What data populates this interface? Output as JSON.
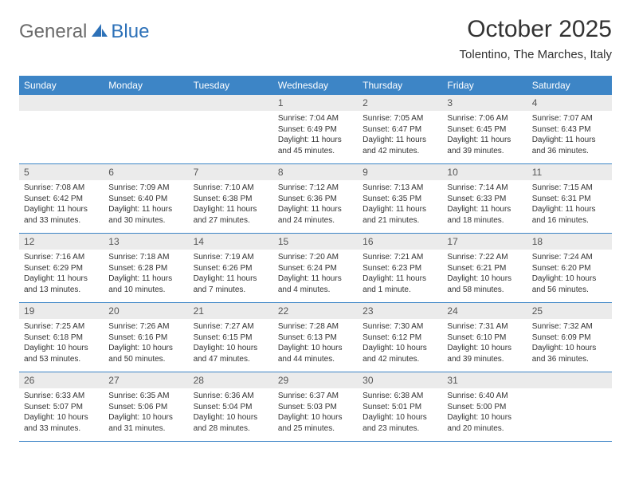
{
  "logo": {
    "general": "General",
    "blue": "Blue"
  },
  "title": "October 2025",
  "location": "Tolentino, The Marches, Italy",
  "colors": {
    "header_bg": "#3d85c6",
    "header_text": "#ffffff",
    "daynum_bg": "#ebebeb",
    "border": "#3d85c6",
    "logo_gray": "#6b6b6b",
    "logo_blue": "#2d71b8"
  },
  "weekdays": [
    "Sunday",
    "Monday",
    "Tuesday",
    "Wednesday",
    "Thursday",
    "Friday",
    "Saturday"
  ],
  "weeks": [
    [
      {
        "empty": true
      },
      {
        "empty": true
      },
      {
        "empty": true
      },
      {
        "day": "1",
        "sunrise": "Sunrise: 7:04 AM",
        "sunset": "Sunset: 6:49 PM",
        "daylight": "Daylight: 11 hours and 45 minutes."
      },
      {
        "day": "2",
        "sunrise": "Sunrise: 7:05 AM",
        "sunset": "Sunset: 6:47 PM",
        "daylight": "Daylight: 11 hours and 42 minutes."
      },
      {
        "day": "3",
        "sunrise": "Sunrise: 7:06 AM",
        "sunset": "Sunset: 6:45 PM",
        "daylight": "Daylight: 11 hours and 39 minutes."
      },
      {
        "day": "4",
        "sunrise": "Sunrise: 7:07 AM",
        "sunset": "Sunset: 6:43 PM",
        "daylight": "Daylight: 11 hours and 36 minutes."
      }
    ],
    [
      {
        "day": "5",
        "sunrise": "Sunrise: 7:08 AM",
        "sunset": "Sunset: 6:42 PM",
        "daylight": "Daylight: 11 hours and 33 minutes."
      },
      {
        "day": "6",
        "sunrise": "Sunrise: 7:09 AM",
        "sunset": "Sunset: 6:40 PM",
        "daylight": "Daylight: 11 hours and 30 minutes."
      },
      {
        "day": "7",
        "sunrise": "Sunrise: 7:10 AM",
        "sunset": "Sunset: 6:38 PM",
        "daylight": "Daylight: 11 hours and 27 minutes."
      },
      {
        "day": "8",
        "sunrise": "Sunrise: 7:12 AM",
        "sunset": "Sunset: 6:36 PM",
        "daylight": "Daylight: 11 hours and 24 minutes."
      },
      {
        "day": "9",
        "sunrise": "Sunrise: 7:13 AM",
        "sunset": "Sunset: 6:35 PM",
        "daylight": "Daylight: 11 hours and 21 minutes."
      },
      {
        "day": "10",
        "sunrise": "Sunrise: 7:14 AM",
        "sunset": "Sunset: 6:33 PM",
        "daylight": "Daylight: 11 hours and 18 minutes."
      },
      {
        "day": "11",
        "sunrise": "Sunrise: 7:15 AM",
        "sunset": "Sunset: 6:31 PM",
        "daylight": "Daylight: 11 hours and 16 minutes."
      }
    ],
    [
      {
        "day": "12",
        "sunrise": "Sunrise: 7:16 AM",
        "sunset": "Sunset: 6:29 PM",
        "daylight": "Daylight: 11 hours and 13 minutes."
      },
      {
        "day": "13",
        "sunrise": "Sunrise: 7:18 AM",
        "sunset": "Sunset: 6:28 PM",
        "daylight": "Daylight: 11 hours and 10 minutes."
      },
      {
        "day": "14",
        "sunrise": "Sunrise: 7:19 AM",
        "sunset": "Sunset: 6:26 PM",
        "daylight": "Daylight: 11 hours and 7 minutes."
      },
      {
        "day": "15",
        "sunrise": "Sunrise: 7:20 AM",
        "sunset": "Sunset: 6:24 PM",
        "daylight": "Daylight: 11 hours and 4 minutes."
      },
      {
        "day": "16",
        "sunrise": "Sunrise: 7:21 AM",
        "sunset": "Sunset: 6:23 PM",
        "daylight": "Daylight: 11 hours and 1 minute."
      },
      {
        "day": "17",
        "sunrise": "Sunrise: 7:22 AM",
        "sunset": "Sunset: 6:21 PM",
        "daylight": "Daylight: 10 hours and 58 minutes."
      },
      {
        "day": "18",
        "sunrise": "Sunrise: 7:24 AM",
        "sunset": "Sunset: 6:20 PM",
        "daylight": "Daylight: 10 hours and 56 minutes."
      }
    ],
    [
      {
        "day": "19",
        "sunrise": "Sunrise: 7:25 AM",
        "sunset": "Sunset: 6:18 PM",
        "daylight": "Daylight: 10 hours and 53 minutes."
      },
      {
        "day": "20",
        "sunrise": "Sunrise: 7:26 AM",
        "sunset": "Sunset: 6:16 PM",
        "daylight": "Daylight: 10 hours and 50 minutes."
      },
      {
        "day": "21",
        "sunrise": "Sunrise: 7:27 AM",
        "sunset": "Sunset: 6:15 PM",
        "daylight": "Daylight: 10 hours and 47 minutes."
      },
      {
        "day": "22",
        "sunrise": "Sunrise: 7:28 AM",
        "sunset": "Sunset: 6:13 PM",
        "daylight": "Daylight: 10 hours and 44 minutes."
      },
      {
        "day": "23",
        "sunrise": "Sunrise: 7:30 AM",
        "sunset": "Sunset: 6:12 PM",
        "daylight": "Daylight: 10 hours and 42 minutes."
      },
      {
        "day": "24",
        "sunrise": "Sunrise: 7:31 AM",
        "sunset": "Sunset: 6:10 PM",
        "daylight": "Daylight: 10 hours and 39 minutes."
      },
      {
        "day": "25",
        "sunrise": "Sunrise: 7:32 AM",
        "sunset": "Sunset: 6:09 PM",
        "daylight": "Daylight: 10 hours and 36 minutes."
      }
    ],
    [
      {
        "day": "26",
        "sunrise": "Sunrise: 6:33 AM",
        "sunset": "Sunset: 5:07 PM",
        "daylight": "Daylight: 10 hours and 33 minutes."
      },
      {
        "day": "27",
        "sunrise": "Sunrise: 6:35 AM",
        "sunset": "Sunset: 5:06 PM",
        "daylight": "Daylight: 10 hours and 31 minutes."
      },
      {
        "day": "28",
        "sunrise": "Sunrise: 6:36 AM",
        "sunset": "Sunset: 5:04 PM",
        "daylight": "Daylight: 10 hours and 28 minutes."
      },
      {
        "day": "29",
        "sunrise": "Sunrise: 6:37 AM",
        "sunset": "Sunset: 5:03 PM",
        "daylight": "Daylight: 10 hours and 25 minutes."
      },
      {
        "day": "30",
        "sunrise": "Sunrise: 6:38 AM",
        "sunset": "Sunset: 5:01 PM",
        "daylight": "Daylight: 10 hours and 23 minutes."
      },
      {
        "day": "31",
        "sunrise": "Sunrise: 6:40 AM",
        "sunset": "Sunset: 5:00 PM",
        "daylight": "Daylight: 10 hours and 20 minutes."
      },
      {
        "empty": true
      }
    ]
  ]
}
